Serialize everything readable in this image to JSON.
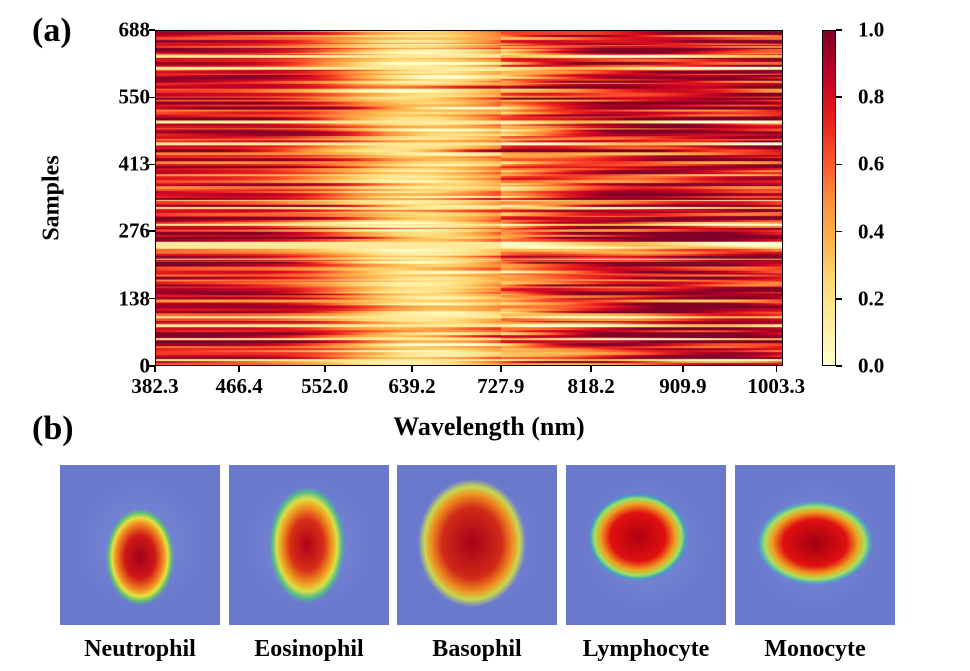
{
  "panels": {
    "a": "(a)",
    "b": "(b)"
  },
  "chart_data": {
    "type": "heatmap",
    "xlabel": "Wavelength (nm)",
    "ylabel": "Samples",
    "x_ticks": [
      "382.3",
      "466.4",
      "552.0",
      "639.2",
      "727.9",
      "818.2",
      "909.9",
      "1003.3"
    ],
    "y_ticks": [
      "0",
      "138",
      "276",
      "413",
      "550",
      "688"
    ],
    "xlim": [
      382.3,
      1010
    ],
    "ylim": [
      0,
      688
    ],
    "colorbar": {
      "colormap": "YlOrRd",
      "range": [
        0.0,
        1.0
      ],
      "ticks": [
        "0.0",
        "0.2",
        "0.4",
        "0.6",
        "0.8",
        "1.0"
      ]
    },
    "grid": false
  },
  "cells": [
    {
      "label": "Neutrophil"
    },
    {
      "label": "Eosinophil"
    },
    {
      "label": "Basophil"
    },
    {
      "label": "Lymphocyte"
    },
    {
      "label": "Monocyte"
    }
  ]
}
